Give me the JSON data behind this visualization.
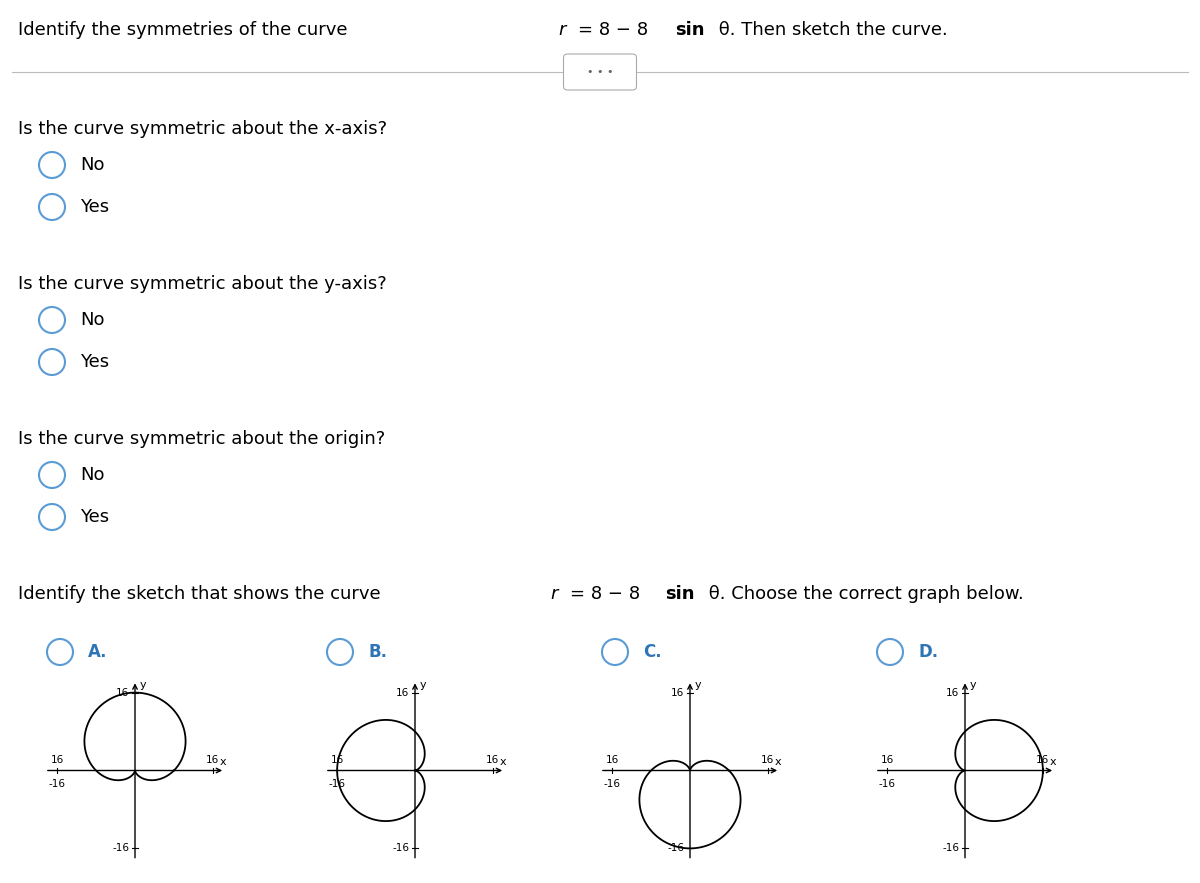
{
  "bg_color": "#ffffff",
  "text_color": "#000000",
  "radio_color": "#5b9bd5",
  "label_color": "#2e75b6",
  "curve_color": "#000000",
  "separator_color": "#bbbbbb",
  "axis_range": 16,
  "graph_labels": [
    "A.",
    "B.",
    "C.",
    "D."
  ],
  "radio_font": 13,
  "body_font": 13,
  "title_font": 13
}
